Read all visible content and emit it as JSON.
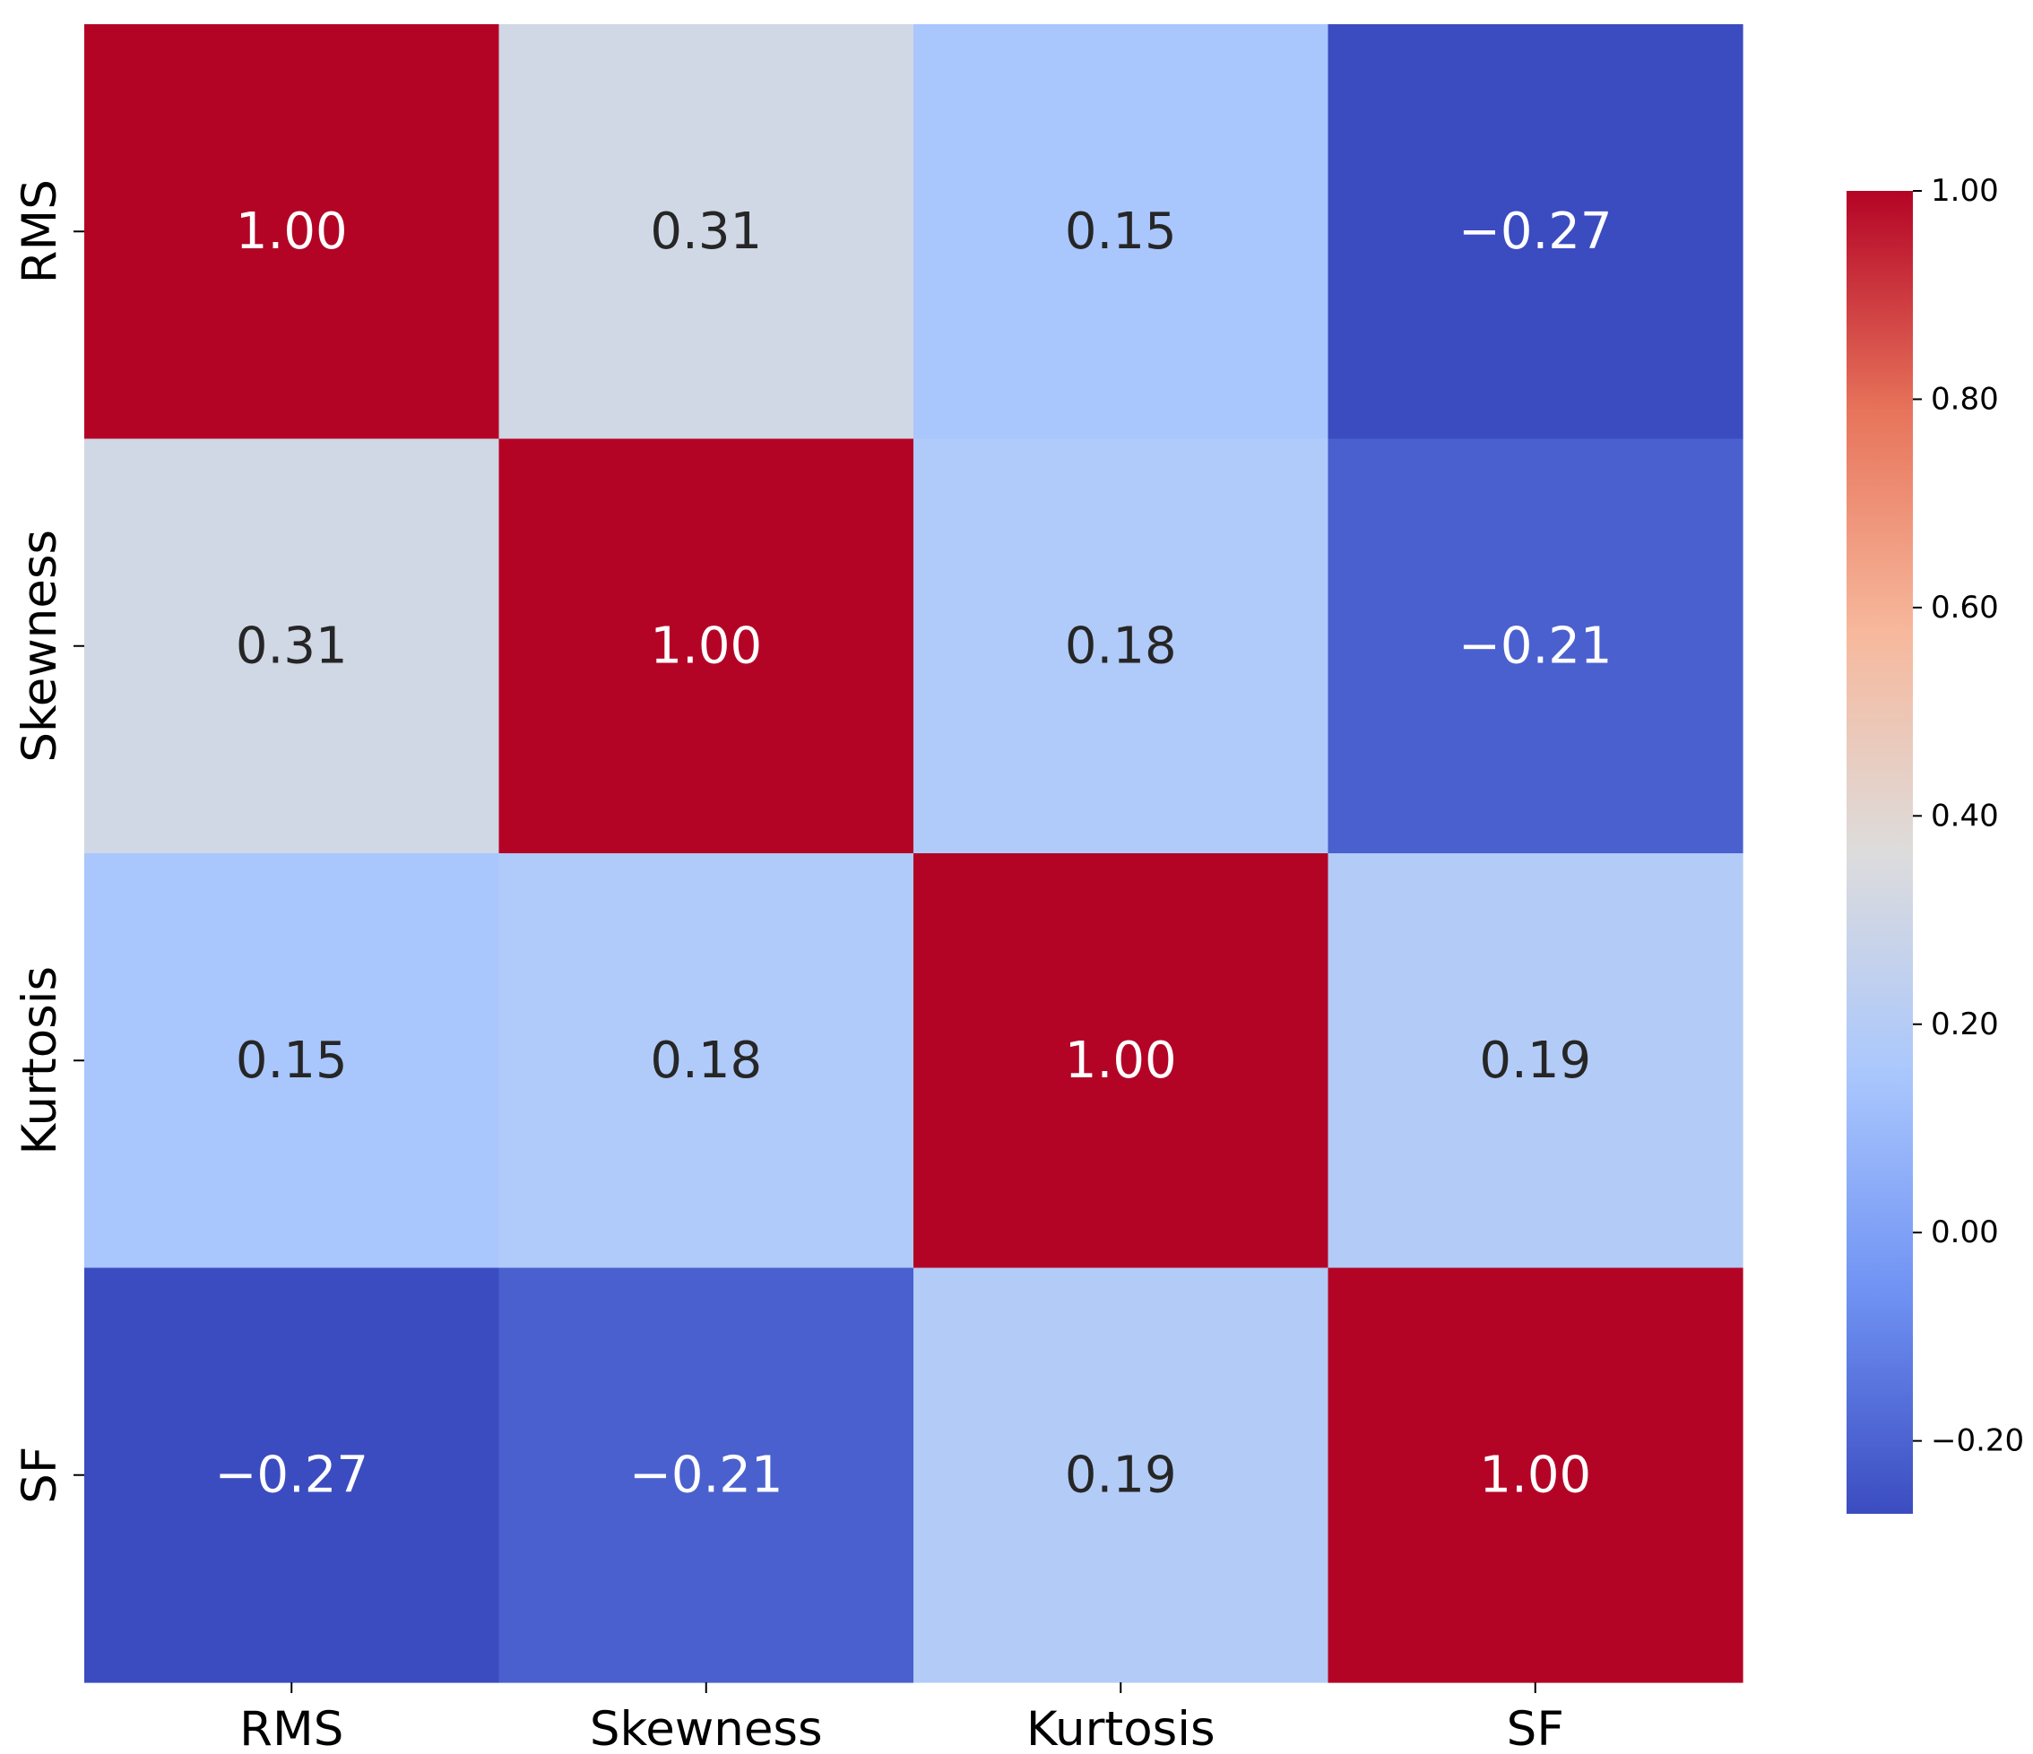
{
  "chart_data": {
    "type": "heatmap",
    "title": "",
    "xlabel": "",
    "ylabel": "",
    "row_labels": [
      "RMS",
      "Skewness",
      "Kurtosis",
      "SF"
    ],
    "col_labels": [
      "RMS",
      "Skewness",
      "Kurtosis",
      "SF"
    ],
    "values": [
      [
        1.0,
        0.31,
        0.15,
        -0.27
      ],
      [
        0.31,
        1.0,
        0.18,
        -0.21
      ],
      [
        0.15,
        0.18,
        1.0,
        0.19
      ],
      [
        -0.27,
        -0.21,
        0.19,
        1.0
      ]
    ],
    "annotations": [
      [
        "1.00",
        "0.31",
        "0.15",
        "−0.27"
      ],
      [
        "0.31",
        "1.00",
        "0.18",
        "−0.21"
      ],
      [
        "0.15",
        "0.18",
        "1.00",
        "0.19"
      ],
      [
        "−0.27",
        "−0.21",
        "0.19",
        "1.00"
      ]
    ],
    "colormap": "coolwarm",
    "colorbar": {
      "range": [
        -0.27,
        1.0
      ],
      "ticks": [
        -0.2,
        0.0,
        0.2,
        0.4,
        0.6,
        0.8,
        1.0
      ],
      "tick_labels": [
        "−0.20",
        "0.00",
        "0.20",
        "0.40",
        "0.60",
        "0.80",
        "1.00"
      ]
    },
    "colors": {
      "stops": [
        "#3b4cc0",
        "#6f92f3",
        "#aac7fd",
        "#dddcdc",
        "#f7b89c",
        "#e7745b",
        "#b40426"
      ],
      "dark_text": "#262626",
      "light_text": "#ffffff",
      "axis": "#000000"
    }
  }
}
